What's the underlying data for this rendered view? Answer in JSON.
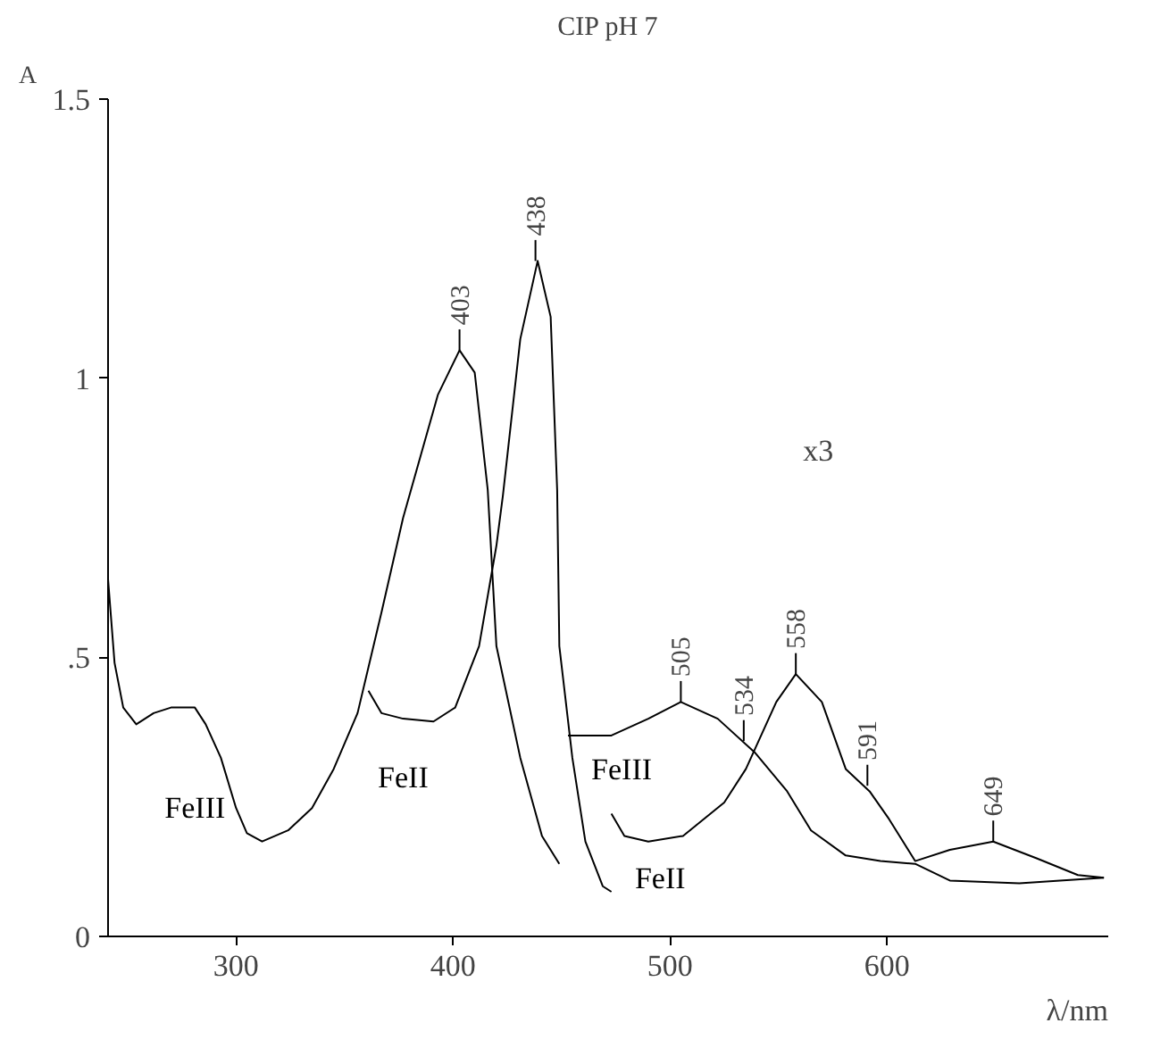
{
  "chart_data": {
    "type": "line",
    "title": "CIP pH 7",
    "xlabel": "λ/nm",
    "ylabel": "A",
    "xlim": [
      241,
      702
    ],
    "ylim": [
      0,
      1.5
    ],
    "xticks": [
      300,
      400,
      500,
      600
    ],
    "yticks": [
      0,
      {
        "value": 0.5,
        "label": ".5"
      },
      1,
      1.5
    ],
    "grid": false,
    "legend": false,
    "marker": "none",
    "line_style": "solid",
    "series": [
      {
        "name": "FeIII",
        "color": "#000000",
        "x": [
          241,
          244,
          248,
          254,
          262,
          270,
          281,
          286,
          293,
          300,
          305,
          312,
          324,
          335,
          345,
          356,
          367,
          377,
          393,
          403,
          410,
          416,
          420,
          431,
          441,
          449
        ],
        "values": [
          0.64,
          0.49,
          0.41,
          0.38,
          0.4,
          0.41,
          0.41,
          0.38,
          0.32,
          0.23,
          0.185,
          0.17,
          0.19,
          0.23,
          0.3,
          0.4,
          0.58,
          0.75,
          0.97,
          1.05,
          1.01,
          0.8,
          0.52,
          0.32,
          0.18,
          0.13
        ]
      },
      {
        "name": "FeII",
        "color": "#000000",
        "x": [
          361,
          367,
          377,
          391,
          401,
          412,
          420,
          423,
          431,
          439,
          445,
          448,
          449,
          455,
          461,
          469,
          473
        ],
        "values": [
          0.44,
          0.4,
          0.39,
          0.385,
          0.41,
          0.52,
          0.7,
          0.79,
          1.07,
          1.21,
          1.11,
          0.8,
          0.52,
          0.32,
          0.17,
          0.09,
          0.08
        ]
      },
      {
        "name": "FeIII",
        "color": "#000000",
        "x": [
          453,
          473,
          490,
          505,
          522,
          539,
          554,
          565,
          581,
          597,
          613,
          629,
          661,
          700
        ],
        "values": [
          0.36,
          0.36,
          0.39,
          0.42,
          0.39,
          0.33,
          0.26,
          0.19,
          0.145,
          0.135,
          0.13,
          0.1,
          0.095,
          0.105
        ]
      },
      {
        "name": "FeII",
        "color": "#000000",
        "x": [
          473,
          479,
          490,
          506,
          525,
          535,
          549,
          558,
          570,
          581,
          592,
          601,
          613,
          629,
          649,
          669,
          688,
          700
        ],
        "values": [
          0.22,
          0.18,
          0.17,
          0.18,
          0.24,
          0.3,
          0.42,
          0.47,
          0.42,
          0.3,
          0.26,
          0.21,
          0.135,
          0.155,
          0.17,
          0.14,
          0.11,
          0.105
        ]
      }
    ],
    "annotations": [
      {
        "text": "403",
        "x": 403,
        "y": 1.05
      },
      {
        "text": "438",
        "x": 438,
        "y": 1.21
      },
      {
        "text": "505",
        "x": 505,
        "y": 0.42
      },
      {
        "text": "534",
        "x": 534,
        "y": 0.35
      },
      {
        "text": "558",
        "x": 558,
        "y": 0.47
      },
      {
        "text": "591",
        "x": 591,
        "y": 0.27
      },
      {
        "text": "649",
        "x": 649,
        "y": 0.17
      },
      "x3"
    ]
  }
}
